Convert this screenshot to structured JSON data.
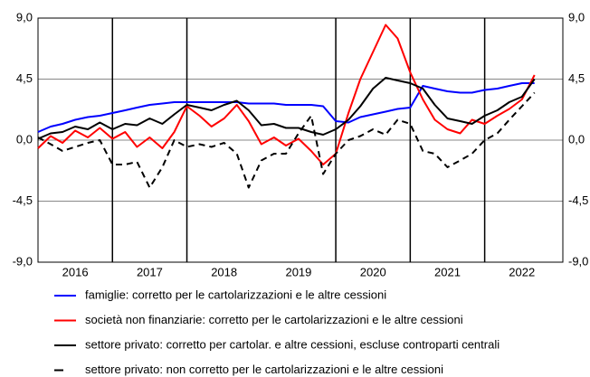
{
  "chart_data": {
    "type": "line",
    "x": [
      2016,
      2016.17,
      2016.33,
      2016.5,
      2016.67,
      2016.83,
      2017,
      2017.17,
      2017.33,
      2017.5,
      2017.67,
      2017.83,
      2018,
      2018.17,
      2018.33,
      2018.5,
      2018.67,
      2018.83,
      2019,
      2019.17,
      2019.33,
      2019.5,
      2019.67,
      2019.83,
      2020,
      2020.17,
      2020.33,
      2020.5,
      2020.67,
      2020.83,
      2021,
      2021.17,
      2021.33,
      2021.5,
      2021.67,
      2021.83,
      2022,
      2022.17,
      2022.33,
      2022.5,
      2022.67
    ],
    "series": [
      {
        "name": "famiglie: corretto per le cartolarizzazioni e le altre cessioni",
        "color": "#0000ff",
        "dash": false,
        "values": [
          0.6,
          1.0,
          1.2,
          1.5,
          1.7,
          1.8,
          2.0,
          2.2,
          2.4,
          2.6,
          2.7,
          2.8,
          2.8,
          2.8,
          2.8,
          2.8,
          2.8,
          2.7,
          2.7,
          2.7,
          2.6,
          2.6,
          2.6,
          2.5,
          1.4,
          1.3,
          1.7,
          1.9,
          2.1,
          2.3,
          2.4,
          4.0,
          3.8,
          3.6,
          3.5,
          3.5,
          3.7,
          3.8,
          4.0,
          4.2,
          4.2
        ]
      },
      {
        "name": "società non finanziarie: corretto per le cartolarizzazioni e le altre cessioni",
        "color": "#ff0000",
        "dash": false,
        "values": [
          -0.6,
          0.3,
          -0.2,
          0.7,
          0.2,
          0.9,
          0.1,
          0.6,
          -0.5,
          0.2,
          -0.6,
          0.6,
          2.5,
          1.8,
          1.0,
          1.6,
          2.6,
          1.4,
          -0.3,
          0.2,
          -0.4,
          0.1,
          -0.8,
          -1.8,
          -1.0,
          2.0,
          4.5,
          6.5,
          8.5,
          7.5,
          5.0,
          3.0,
          1.5,
          0.8,
          0.5,
          1.5,
          1.2,
          1.8,
          2.3,
          3.0,
          4.8
        ]
      },
      {
        "name": "settore privato: corretto per cartolar. e altre cessioni, escluse controparti centrali",
        "color": "#000000",
        "dash": false,
        "values": [
          0.1,
          0.5,
          0.6,
          1.0,
          0.8,
          1.3,
          0.8,
          1.2,
          1.1,
          1.6,
          1.2,
          1.9,
          2.6,
          2.4,
          2.2,
          2.6,
          2.9,
          2.2,
          1.1,
          1.2,
          0.9,
          0.9,
          0.6,
          0.4,
          0.8,
          1.5,
          2.5,
          3.8,
          4.6,
          4.4,
          4.2,
          3.8,
          2.6,
          1.6,
          1.4,
          1.2,
          1.8,
          2.2,
          2.8,
          3.2,
          4.5
        ]
      },
      {
        "name": "settore privato: non corretto per le cartolarizzazioni e le altre cessioni",
        "color": "#000000",
        "dash": true,
        "values": [
          0.2,
          -0.3,
          -0.8,
          -0.5,
          -0.2,
          0.0,
          -1.8,
          -1.8,
          -1.6,
          -3.5,
          -2.0,
          0.0,
          -0.5,
          -0.3,
          -0.5,
          -0.2,
          -1.0,
          -3.5,
          -1.5,
          -1.0,
          -1.0,
          0.5,
          1.8,
          -2.5,
          -1.0,
          0.0,
          0.3,
          0.8,
          0.4,
          1.5,
          1.2,
          -0.8,
          -1.0,
          -2.0,
          -1.5,
          -1.0,
          0.0,
          0.5,
          1.5,
          2.5,
          3.5
        ]
      }
    ],
    "xlim": [
      2016,
      2023.05
    ],
    "xticks": [
      {
        "value": 2016.5,
        "label": "2016"
      },
      {
        "value": 2017.5,
        "label": "2017"
      },
      {
        "value": 2018.5,
        "label": "2018"
      },
      {
        "value": 2019.5,
        "label": "2019"
      },
      {
        "value": 2020.5,
        "label": "2020"
      },
      {
        "value": 2021.5,
        "label": "2021"
      },
      {
        "value": 2022.5,
        "label": "2022"
      }
    ],
    "xgrid": [
      2017,
      2018,
      2020,
      2021,
      2022
    ],
    "ylim": [
      -9,
      9
    ],
    "yticks": [
      {
        "value": -9,
        "label": "-9,0"
      },
      {
        "value": -4.5,
        "label": "-4,5"
      },
      {
        "value": 0,
        "label": "0,0"
      },
      {
        "value": 4.5,
        "label": "4,5"
      },
      {
        "value": 9,
        "label": "9,0"
      }
    ],
    "grid": true,
    "legend": "bottom"
  }
}
